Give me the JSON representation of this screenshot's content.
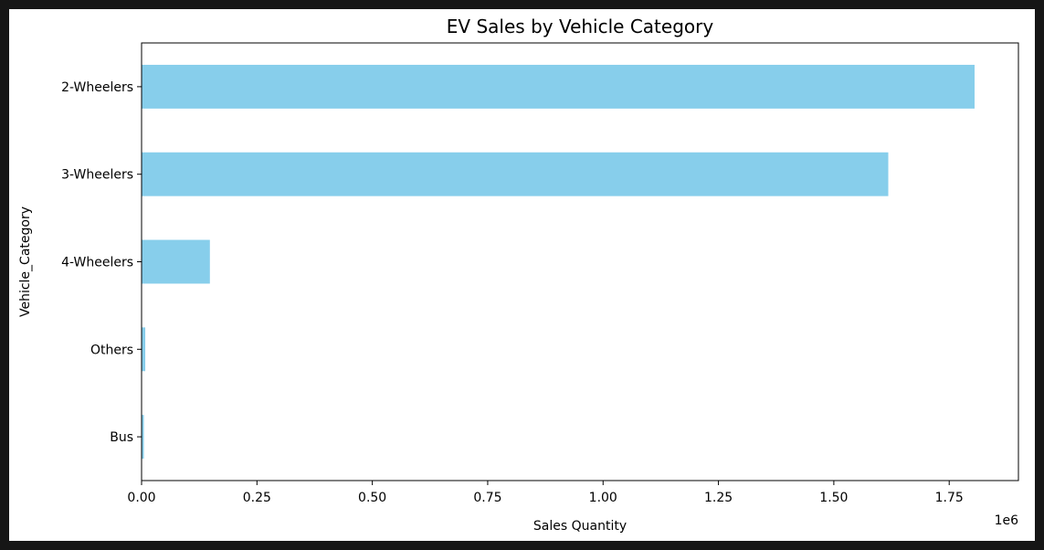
{
  "chart_data": {
    "type": "bar",
    "orientation": "horizontal",
    "title": "EV Sales by Vehicle Category",
    "xlabel": "Sales Quantity",
    "ylabel": "Vehicle_Category",
    "x_scale_label": "1e6",
    "xlim": [
      0,
      1.9
    ],
    "x_ticks": [
      0.0,
      0.25,
      0.5,
      0.75,
      1.0,
      1.25,
      1.5,
      1.75
    ],
    "x_tick_labels": [
      "0.00",
      "0.25",
      "0.50",
      "0.75",
      "1.00",
      "1.25",
      "1.50",
      "1.75"
    ],
    "categories": [
      "2-Wheelers",
      "3-Wheelers",
      "4-Wheelers",
      "Others",
      "Bus"
    ],
    "values": [
      1.805,
      1.618,
      0.148,
      0.008,
      0.005
    ],
    "grid": false,
    "legend": "none",
    "bar_color": "#87ceeb"
  },
  "colors": {
    "frame_background": "#161616",
    "plot_background": "#ffffff",
    "axis_color": "#000000"
  }
}
